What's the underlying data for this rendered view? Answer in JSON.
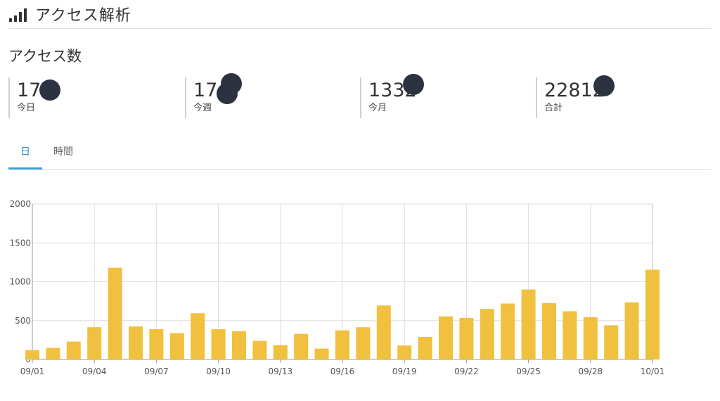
{
  "header": {
    "title": "アクセス解析",
    "icon": "signal-bars-icon"
  },
  "section_title": "アクセス数",
  "stats": [
    {
      "value": "17",
      "label": "今日"
    },
    {
      "value": "17",
      "label": "今週"
    },
    {
      "value": "1332",
      "label": "今月"
    },
    {
      "value": "22812",
      "label": "合計"
    }
  ],
  "tabs": [
    {
      "label": "日",
      "active": true
    },
    {
      "label": "時間",
      "active": false
    }
  ],
  "colors": {
    "bar": "#F0C03E",
    "accent": "#3B9FD6",
    "grid": "#DDDDDD",
    "redaction": "#2D3240"
  },
  "chart_data": {
    "type": "bar",
    "x": [
      "09/01",
      "09/02",
      "09/03",
      "09/04",
      "09/05",
      "09/06",
      "09/07",
      "09/08",
      "09/09",
      "09/10",
      "09/11",
      "09/12",
      "09/13",
      "09/14",
      "09/15",
      "09/16",
      "09/17",
      "09/18",
      "09/19",
      "09/20",
      "09/21",
      "09/22",
      "09/23",
      "09/24",
      "09/25",
      "09/26",
      "09/27",
      "09/28",
      "09/29",
      "09/30",
      "10/01"
    ],
    "x_tick_labels": [
      "09/01",
      "09/04",
      "09/07",
      "09/10",
      "09/13",
      "09/16",
      "09/19",
      "09/22",
      "09/25",
      "09/28",
      "10/01"
    ],
    "values": [
      120,
      150,
      230,
      415,
      1180,
      425,
      390,
      340,
      595,
      390,
      365,
      240,
      185,
      330,
      140,
      375,
      415,
      695,
      180,
      290,
      555,
      535,
      650,
      720,
      900,
      725,
      620,
      545,
      440,
      735,
      1155
    ],
    "ylim": [
      0,
      2000
    ],
    "y_ticks": [
      0,
      500,
      1000,
      1500,
      2000
    ],
    "grid": true,
    "title": "",
    "xlabel": "",
    "ylabel": ""
  }
}
